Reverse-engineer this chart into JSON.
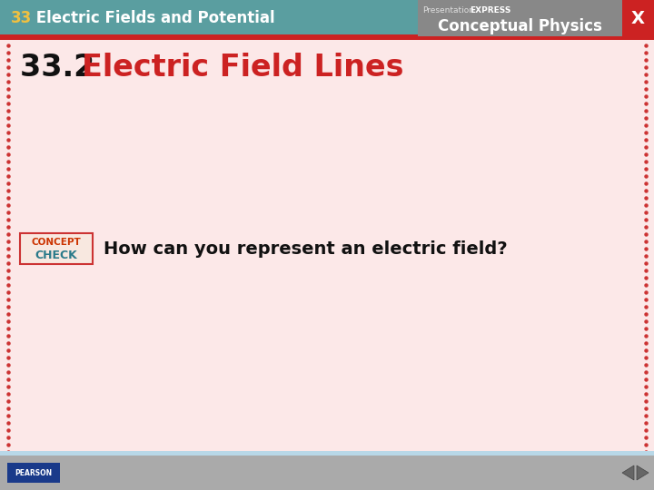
{
  "header_bg": "#5a9ea0",
  "header_text_number": "33",
  "header_text_title": " Electric Fields and Potential",
  "header_number_color": "#f0c040",
  "header_title_color": "#ffffff",
  "red_bar_color": "#cc2222",
  "main_bg": "#fce8e8",
  "border_dot_color": "#cc3333",
  "slide_title_number": "33.2 ",
  "slide_title_text": "Electric Field Lines",
  "slide_title_number_color": "#111111",
  "slide_title_text_color": "#cc2222",
  "concept_check_text": "How can you represent an electric field?",
  "concept_check_color": "#111111",
  "concept_word_color": "#cc3300",
  "check_word_color": "#2a7a8a",
  "right_panel_bg": "#888888",
  "right_panel_text3": "Conceptual Physics",
  "x_button_bg": "#cc2222",
  "footer_bg": "#aaaaaa",
  "pearson_bg": "#1a3a8a",
  "pearson_text": "PEARSON",
  "nav_arrow_color": "#666666",
  "figwidth": 7.2,
  "figheight": 5.4,
  "dpi": 100
}
